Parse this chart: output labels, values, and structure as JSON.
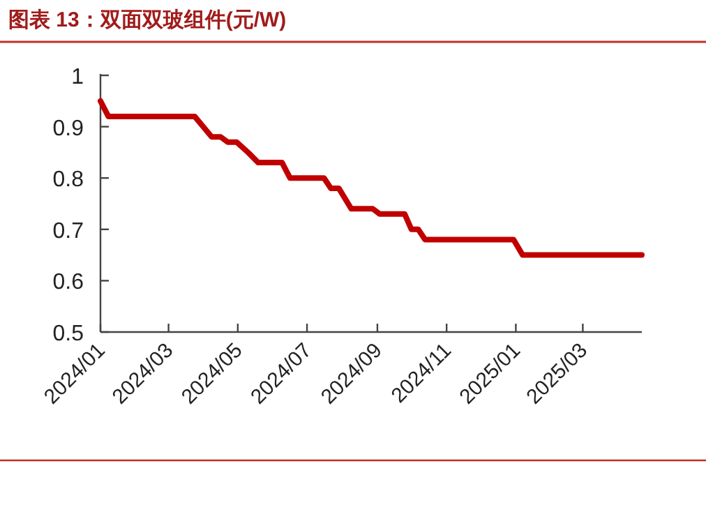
{
  "chart_data": {
    "type": "line",
    "title": "图表 13：双面双玻组件(元/W)",
    "x": [
      "2024-01-01",
      "2024-01-08",
      "2024-03-24",
      "2024-04-08",
      "2024-04-16",
      "2024-04-22",
      "2024-04-30",
      "2024-05-10",
      "2024-05-19",
      "2024-06-09",
      "2024-06-16",
      "2024-07-16",
      "2024-07-22",
      "2024-07-29",
      "2024-08-09",
      "2024-08-28",
      "2024-09-03",
      "2024-09-25",
      "2024-10-01",
      "2024-10-07",
      "2024-10-13",
      "2024-12-30",
      "2025-01-07",
      "2025-04-22"
    ],
    "series": [
      {
        "color": "#c00000",
        "values": [
          0.95,
          0.92,
          0.92,
          0.88,
          0.88,
          0.87,
          0.87,
          0.85,
          0.83,
          0.83,
          0.8,
          0.8,
          0.78,
          0.78,
          0.74,
          0.74,
          0.73,
          0.73,
          0.7,
          0.7,
          0.68,
          0.68,
          0.65,
          0.65
        ]
      }
    ],
    "xlim": [
      "2024-01-01",
      "2025-04-22"
    ],
    "xticks": [
      {
        "value": "2024-01",
        "label": "2024/01"
      },
      {
        "value": "2024-03",
        "label": "2024/03"
      },
      {
        "value": "2024-05",
        "label": "2024/05"
      },
      {
        "value": "2024-07",
        "label": "2024/07"
      },
      {
        "value": "2024-09",
        "label": "2024/09"
      },
      {
        "value": "2024-11",
        "label": "2024/11"
      },
      {
        "value": "2025-01",
        "label": "2025/01"
      },
      {
        "value": "2025-03",
        "label": "2025/03"
      }
    ],
    "ylim": [
      0.5,
      1
    ],
    "yticks": [
      0.5,
      0.6,
      0.7,
      0.8,
      0.9,
      1
    ],
    "grid": false
  }
}
